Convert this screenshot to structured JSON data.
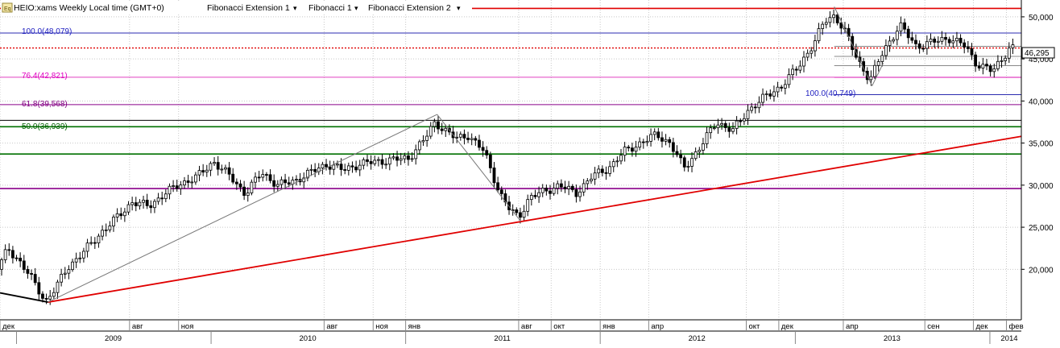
{
  "header": {
    "symbol_label": "HEIO:xams Weekly Local time (GMT+0)",
    "indicators": [
      "Fibonacci Extension 1",
      "Fibonacci 1",
      "Fibonacci Extension 2"
    ],
    "caret": "▾"
  },
  "last_price_label": "46,295",
  "fib_labels": {
    "f100_left": "100.0(48,079)",
    "f764": "76.4(42,821)",
    "f618": "61.8(39,568)",
    "f500": "50.0(36,939)",
    "f100_right": "100.0(40,749)"
  },
  "colors": {
    "background": "#ffffff",
    "grid": "#c8c8c8",
    "bull_candle": "#ffffff",
    "bear_candle": "#000000",
    "trendline": "#e00000",
    "fib_red": "#e00000",
    "fib_blue": "#2b2bb0",
    "fib_pink": "#e040c0",
    "fib_purple": "#8a008a",
    "fib_green": "#007000",
    "fib_black": "#000000",
    "label_blue": "#2020c0",
    "label_pink": "#e000c0",
    "label_purple": "#800080",
    "label_green": "#006000"
  },
  "chart_data": {
    "type": "candlestick",
    "title": "HEIO:xams Weekly Local time (GMT+0)",
    "y_range": [
      14000,
      52000
    ],
    "y_ticks": [
      {
        "value": 20000,
        "label": "20,000"
      },
      {
        "value": 25000,
        "label": "25,000"
      },
      {
        "value": 30000,
        "label": "30,000"
      },
      {
        "value": 35000,
        "label": "35,000"
      },
      {
        "value": 40000,
        "label": "40,000"
      },
      {
        "value": 45000,
        "label": "45,000"
      },
      {
        "value": 50000,
        "label": "50,000"
      }
    ],
    "x_range": [
      "2008-12-01",
      "2014-03-01"
    ],
    "month_ticks": [
      {
        "date": "2008-12-01",
        "label": "дек"
      },
      {
        "date": "2009-08-01",
        "label": "авг"
      },
      {
        "date": "2009-11-01",
        "label": "ноя"
      },
      {
        "date": "2010-08-01",
        "label": "авг"
      },
      {
        "date": "2010-11-01",
        "label": "ноя"
      },
      {
        "date": "2011-01-01",
        "label": "янв"
      },
      {
        "date": "2011-08-01",
        "label": "авг"
      },
      {
        "date": "2011-10-01",
        "label": "окт"
      },
      {
        "date": "2012-01-01",
        "label": "янв"
      },
      {
        "date": "2012-04-01",
        "label": "апр"
      },
      {
        "date": "2012-10-01",
        "label": "окт"
      },
      {
        "date": "2012-12-01",
        "label": "дек"
      },
      {
        "date": "2013-04-01",
        "label": "апр"
      },
      {
        "date": "2013-09-01",
        "label": "сен"
      },
      {
        "date": "2013-12-01",
        "label": "дек"
      },
      {
        "date": "2014-02-01",
        "label": "фев"
      }
    ],
    "year_ticks": [
      {
        "date": "2009-01-01",
        "label": "2009"
      },
      {
        "date": "2010-01-01",
        "label": "2010"
      },
      {
        "date": "2011-01-01",
        "label": "2011"
      },
      {
        "date": "2012-01-01",
        "label": "2012"
      },
      {
        "date": "2013-01-01",
        "label": "2013"
      },
      {
        "date": "2014-01-01",
        "label": "2014"
      }
    ],
    "price_path": [
      [
        "2008-12-01",
        20000
      ],
      [
        "2008-12-20",
        22500
      ],
      [
        "2009-01-10",
        21000
      ],
      [
        "2009-02-01",
        19000
      ],
      [
        "2009-03-01",
        16200
      ],
      [
        "2009-03-20",
        17800
      ],
      [
        "2009-04-10",
        20200
      ],
      [
        "2009-05-10",
        22000
      ],
      [
        "2009-06-10",
        24200
      ],
      [
        "2009-07-10",
        26000
      ],
      [
        "2009-08-10",
        28000
      ],
      [
        "2009-09-10",
        27500
      ],
      [
        "2009-10-10",
        29000
      ],
      [
        "2009-11-10",
        30200
      ],
      [
        "2009-12-10",
        31000
      ],
      [
        "2010-01-10",
        32800
      ],
      [
        "2010-02-10",
        31000
      ],
      [
        "2010-03-10",
        29000
      ],
      [
        "2010-04-10",
        31500
      ],
      [
        "2010-05-10",
        30000
      ],
      [
        "2010-06-10",
        30500
      ],
      [
        "2010-07-10",
        31500
      ],
      [
        "2010-08-10",
        32500
      ],
      [
        "2010-09-10",
        31800
      ],
      [
        "2010-10-10",
        32500
      ],
      [
        "2010-11-10",
        32800
      ],
      [
        "2010-12-10",
        33000
      ],
      [
        "2011-01-10",
        33200
      ],
      [
        "2011-02-10",
        35500
      ],
      [
        "2011-03-01",
        37500
      ],
      [
        "2011-03-20",
        36500
      ],
      [
        "2011-04-10",
        35500
      ],
      [
        "2011-05-01",
        36000
      ],
      [
        "2011-06-01",
        34000
      ],
      [
        "2011-07-01",
        29000
      ],
      [
        "2011-07-20",
        27000
      ],
      [
        "2011-08-05",
        26200
      ],
      [
        "2011-08-25",
        28500
      ],
      [
        "2011-09-20",
        29200
      ],
      [
        "2011-10-20",
        30000
      ],
      [
        "2011-11-20",
        29000
      ],
      [
        "2011-12-20",
        31000
      ],
      [
        "2012-01-20",
        32000
      ],
      [
        "2012-02-20",
        34000
      ],
      [
        "2012-03-20",
        35000
      ],
      [
        "2012-04-20",
        36000
      ],
      [
        "2012-05-15",
        35000
      ],
      [
        "2012-06-10",
        32000
      ],
      [
        "2012-07-10",
        34500
      ],
      [
        "2012-08-10",
        37500
      ],
      [
        "2012-09-10",
        36500
      ],
      [
        "2012-10-10",
        39000
      ],
      [
        "2012-11-10",
        40500
      ],
      [
        "2012-12-10",
        41800
      ],
      [
        "2013-01-10",
        44000
      ],
      [
        "2013-02-10",
        47000
      ],
      [
        "2013-03-01",
        49500
      ],
      [
        "2013-03-20",
        50200
      ],
      [
        "2013-04-10",
        48000
      ],
      [
        "2013-05-01",
        45000
      ],
      [
        "2013-05-25",
        42500
      ],
      [
        "2013-06-20",
        46000
      ],
      [
        "2013-07-20",
        49000
      ],
      [
        "2013-08-20",
        46500
      ],
      [
        "2013-09-20",
        47000
      ],
      [
        "2013-10-20",
        47500
      ],
      [
        "2013-11-20",
        46500
      ],
      [
        "2013-12-10",
        44500
      ],
      [
        "2014-01-10",
        43500
      ],
      [
        "2014-01-25",
        44800
      ],
      [
        "2014-02-10",
        46295
      ]
    ],
    "horizontal_levels": [
      {
        "value": 51000,
        "color": "red"
      },
      {
        "value": 48079,
        "color": "blue",
        "label": "100.0(48,079)"
      },
      {
        "value": 46295,
        "color": "red",
        "dotted": true
      },
      {
        "value": 42821,
        "color": "pink",
        "label": "76.4(42,821)"
      },
      {
        "value": 39568,
        "color": "purple",
        "label": "61.8(39,568)"
      },
      {
        "value": 37700,
        "color": "black"
      },
      {
        "value": 36939,
        "color": "green",
        "label": "50.0(36,939)"
      },
      {
        "value": 33700,
        "color": "green"
      },
      {
        "value": 29600,
        "color": "purple"
      }
    ],
    "short_levels": [
      {
        "value": 46500,
        "from": "2013-03-15",
        "color": "gray"
      },
      {
        "value": 45300,
        "from": "2013-03-15",
        "color": "gray"
      },
      {
        "value": 44200,
        "from": "2013-03-15",
        "color": "gray"
      },
      {
        "value": 42800,
        "from": "2013-03-15",
        "color": "pink"
      },
      {
        "value": 40749,
        "from": "2013-03-15",
        "color": "blue",
        "label": "100.0(40,749)"
      }
    ],
    "trendlines": [
      {
        "from": [
          "2009-03-01",
          16100
        ],
        "to": [
          "2014-03-01",
          35800
        ],
        "color": "red"
      },
      {
        "from": [
          "2008-12-01",
          17200
        ],
        "to": [
          "2009-03-01",
          16100
        ],
        "color": "black"
      }
    ],
    "fib_extension_lines": [
      {
        "from": [
          "2009-03-01",
          16100
        ],
        "to": [
          "2011-03-01",
          38400
        ]
      },
      {
        "from": [
          "2011-03-01",
          38400
        ],
        "to": [
          "2011-08-05",
          25700
        ]
      },
      {
        "from": [
          "2013-03-15",
          51200
        ],
        "to": [
          "2013-05-25",
          41800
        ]
      },
      {
        "from": [
          "2013-05-25",
          41800
        ],
        "to": [
          "2013-06-15",
          44500
        ]
      }
    ]
  }
}
